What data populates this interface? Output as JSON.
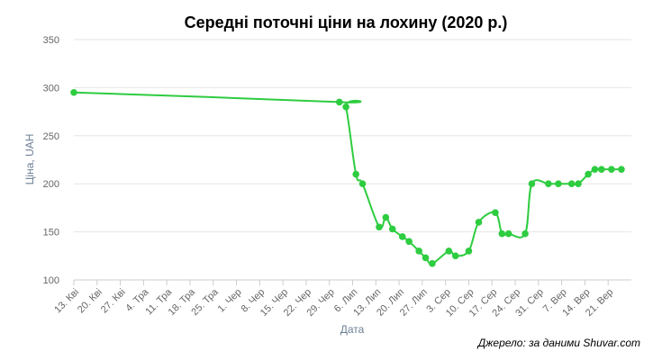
{
  "chart_data": {
    "type": "line",
    "title": "Середні поточні ціни на лохину (2020 р.)",
    "xlabel": "Дата",
    "ylabel": "Ціна, UAH",
    "ylim": [
      100,
      350
    ],
    "yticks": [
      100,
      150,
      200,
      250,
      300,
      350
    ],
    "x_tick_labels": [
      "13. Кві",
      "20. Кві",
      "27. Кві",
      "4. Тра",
      "11. Тра",
      "18. Тра",
      "25. Тра",
      "1. Чер",
      "8. Чер",
      "15. Чер",
      "22. Чер",
      "29. Чер",
      "6. Лип",
      "13. Лип",
      "20. Лип",
      "27. Лип",
      "3. Сер",
      "10. Сер",
      "17. Сер",
      "24. Сер",
      "31. Сер",
      "7. Вер",
      "14. Вер",
      "21. Вер"
    ],
    "x_start": "2020-04-13",
    "x_end": "2020-09-28",
    "grid": true,
    "series": [
      {
        "color": "#2ecc40",
        "points": [
          {
            "x": "2020-04-13",
            "y": 295
          },
          {
            "x": "2020-07-02",
            "y": 285
          },
          {
            "x": "2020-07-04",
            "y": 280
          },
          {
            "x": "2020-07-07",
            "y": 210
          },
          {
            "x": "2020-07-09",
            "y": 200
          },
          {
            "x": "2020-07-14",
            "y": 155
          },
          {
            "x": "2020-07-16",
            "y": 165
          },
          {
            "x": "2020-07-18",
            "y": 153
          },
          {
            "x": "2020-07-21",
            "y": 145
          },
          {
            "x": "2020-07-23",
            "y": 140
          },
          {
            "x": "2020-07-26",
            "y": 130
          },
          {
            "x": "2020-07-28",
            "y": 123
          },
          {
            "x": "2020-07-30",
            "y": 117
          },
          {
            "x": "2020-08-04",
            "y": 130
          },
          {
            "x": "2020-08-06",
            "y": 125
          },
          {
            "x": "2020-08-10",
            "y": 130
          },
          {
            "x": "2020-08-13",
            "y": 160
          },
          {
            "x": "2020-08-18",
            "y": 170
          },
          {
            "x": "2020-08-20",
            "y": 148
          },
          {
            "x": "2020-08-22",
            "y": 148
          },
          {
            "x": "2020-08-27",
            "y": 148
          },
          {
            "x": "2020-08-29",
            "y": 200
          },
          {
            "x": "2020-09-03",
            "y": 200
          },
          {
            "x": "2020-09-06",
            "y": 200
          },
          {
            "x": "2020-09-10",
            "y": 200
          },
          {
            "x": "2020-09-12",
            "y": 200
          },
          {
            "x": "2020-09-15",
            "y": 210
          },
          {
            "x": "2020-09-17",
            "y": 215
          },
          {
            "x": "2020-09-19",
            "y": 215
          },
          {
            "x": "2020-09-22",
            "y": 215
          },
          {
            "x": "2020-09-25",
            "y": 215
          }
        ]
      }
    ],
    "source": "Джерело: за даними Shuvar.com"
  }
}
